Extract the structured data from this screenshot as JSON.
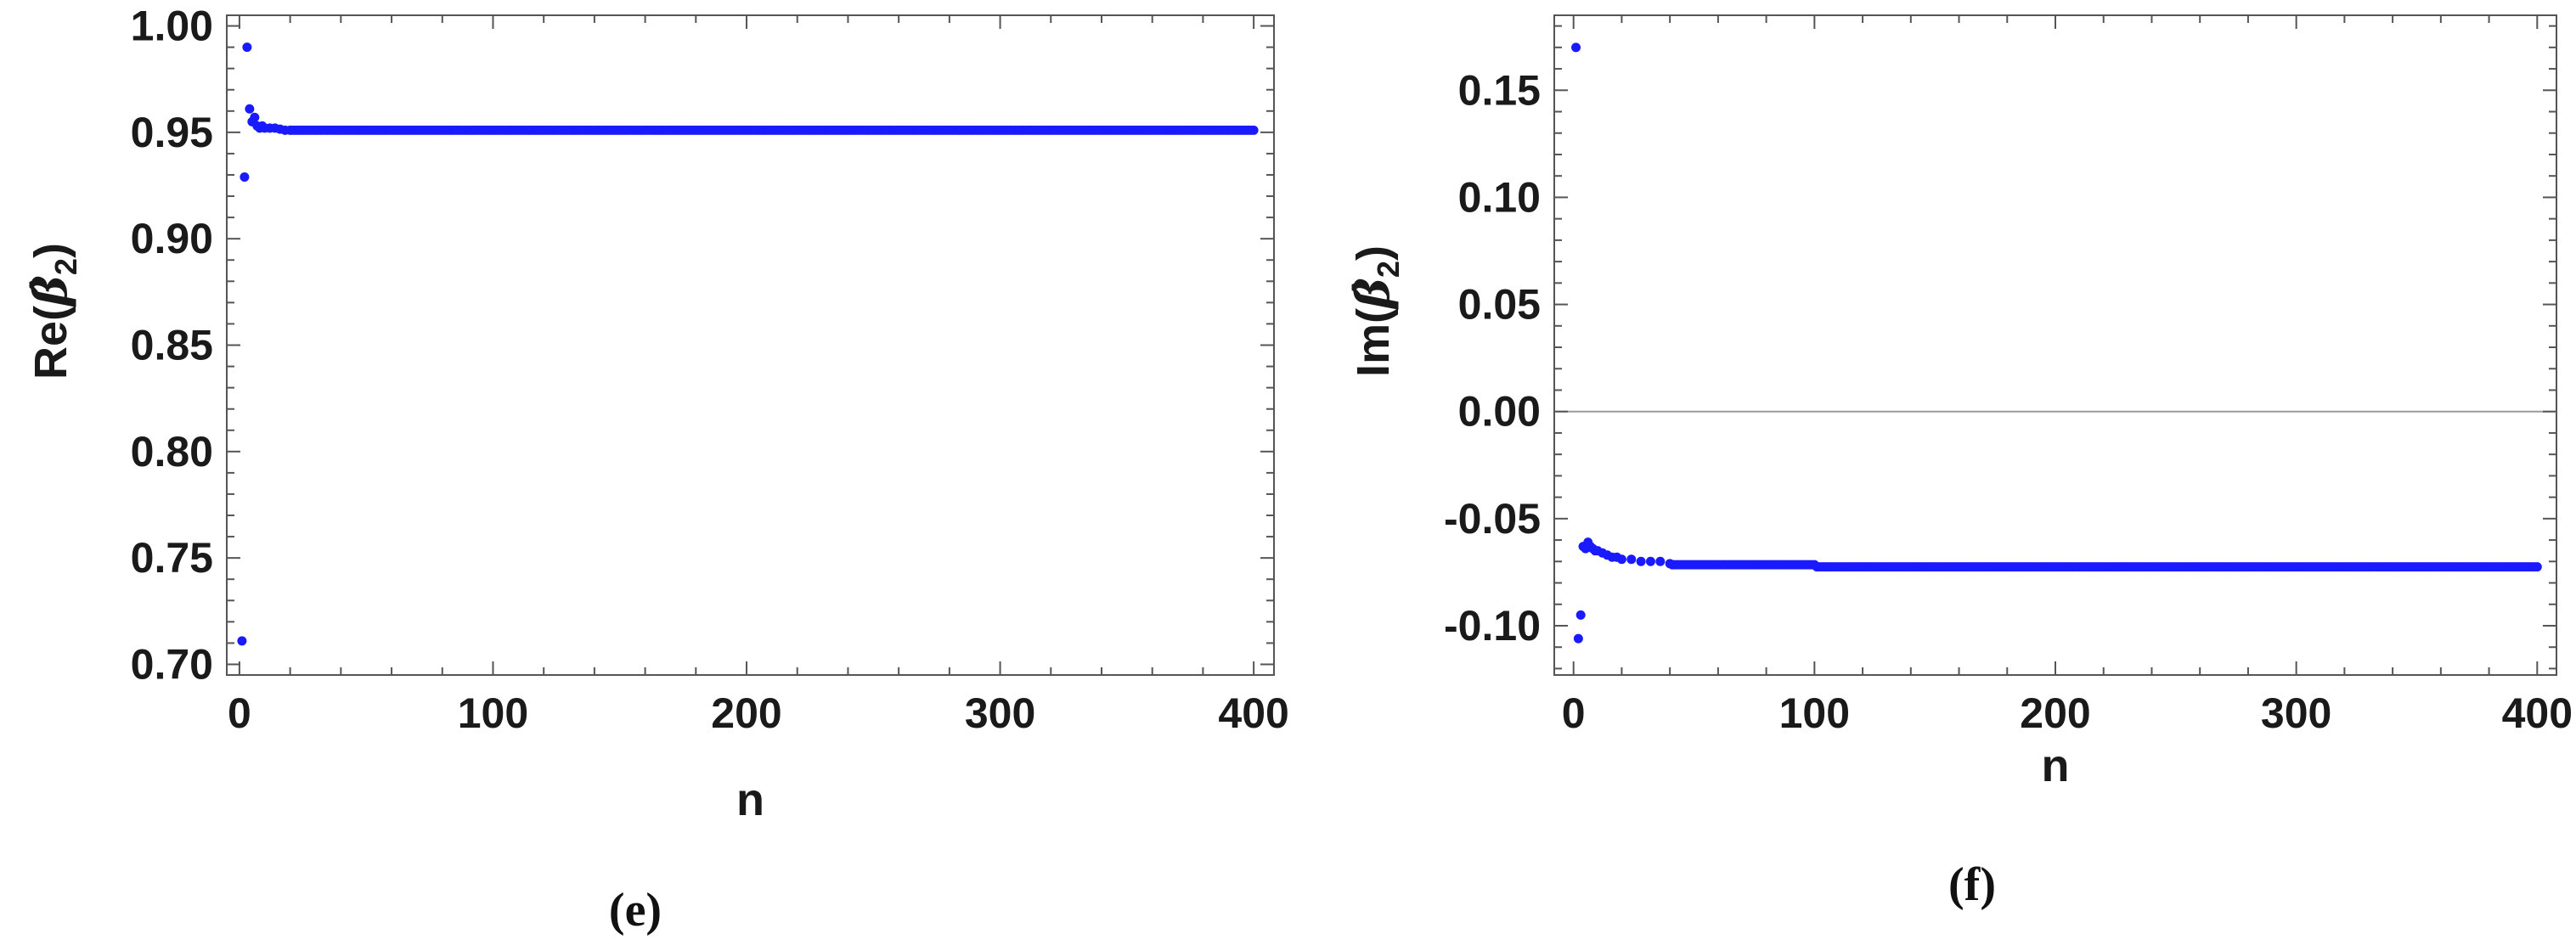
{
  "chart_data": [
    {
      "type": "scatter",
      "panel": "(e)",
      "xlabel": "n",
      "ylabel_prefix": "Re(",
      "ylabel_symbol": "β",
      "ylabel_subscript": "2",
      "ylabel_suffix": ")",
      "xlim": [
        -5,
        408
      ],
      "ylim": [
        0.695,
        1.005
      ],
      "xticks": [
        0,
        100,
        200,
        300,
        400
      ],
      "yticks": [
        0.7,
        0.75,
        0.8,
        0.85,
        0.9,
        0.95,
        1.0
      ],
      "ytick_labels": [
        "0.70",
        "0.75",
        "0.80",
        "0.85",
        "0.90",
        "0.95",
        "1.00"
      ],
      "color": "#1a1aff",
      "zero_line": false,
      "points": [
        [
          1,
          0.711
        ],
        [
          2,
          0.929
        ],
        [
          3,
          0.99
        ],
        [
          4,
          0.961
        ],
        [
          5,
          0.955
        ],
        [
          6,
          0.957
        ],
        [
          7,
          0.953
        ],
        [
          8,
          0.952
        ],
        [
          9,
          0.953
        ],
        [
          10,
          0.952
        ],
        [
          12,
          0.952
        ],
        [
          14,
          0.952
        ],
        [
          16,
          0.9515
        ],
        [
          18,
          0.951
        ],
        [
          20,
          0.951
        ]
      ],
      "steady": {
        "from": 21,
        "to": 400,
        "value": 0.951
      }
    },
    {
      "type": "scatter",
      "panel": "(f)",
      "xlabel": "n",
      "ylabel_prefix": "Im(",
      "ylabel_symbol": "β",
      "ylabel_subscript": "2",
      "ylabel_suffix": ")",
      "xlim": [
        -8,
        408
      ],
      "ylim": [
        -0.123,
        0.185
      ],
      "xticks": [
        0,
        100,
        200,
        300,
        400
      ],
      "yticks": [
        -0.1,
        -0.05,
        0.0,
        0.05,
        0.1,
        0.15
      ],
      "ytick_labels": [
        "-0.10",
        "-0.05",
        "0.00",
        "0.05",
        "0.10",
        "0.15"
      ],
      "color": "#1a1aff",
      "zero_line": true,
      "points": [
        [
          1,
          0.17
        ],
        [
          2,
          -0.106
        ],
        [
          3,
          -0.095
        ],
        [
          4,
          -0.063
        ],
        [
          5,
          -0.064
        ],
        [
          6,
          -0.061
        ],
        [
          7,
          -0.063
        ],
        [
          8,
          -0.064
        ],
        [
          9,
          -0.065
        ],
        [
          10,
          -0.065
        ],
        [
          12,
          -0.066
        ],
        [
          14,
          -0.067
        ],
        [
          16,
          -0.068
        ],
        [
          18,
          -0.068
        ],
        [
          20,
          -0.069
        ],
        [
          24,
          -0.069
        ],
        [
          28,
          -0.07
        ],
        [
          32,
          -0.07
        ],
        [
          36,
          -0.07
        ],
        [
          40,
          -0.071
        ]
      ],
      "steady": [
        {
          "from": 41,
          "to": 100,
          "value": -0.0715
        },
        {
          "from": 101,
          "to": 400,
          "value": -0.0725
        }
      ]
    }
  ]
}
